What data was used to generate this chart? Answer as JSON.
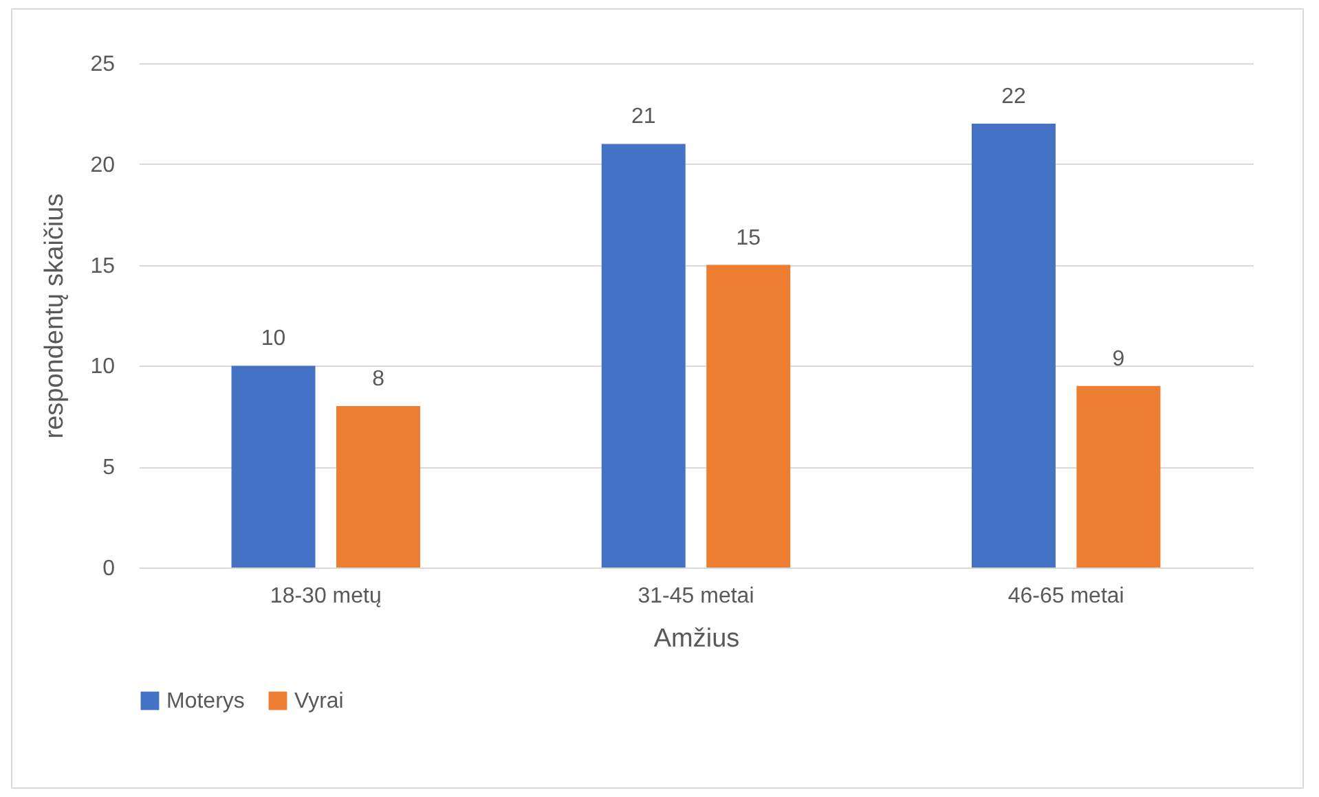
{
  "chart_data": {
    "type": "bar",
    "xlabel": "Amžius",
    "ylabel": "respondentų skaičius",
    "categories": [
      "18-30 metų",
      "31-45 metai",
      "46-65 metai"
    ],
    "series": [
      {
        "name": "Moterys",
        "color": "#4472c4",
        "values": [
          10,
          21,
          22
        ]
      },
      {
        "name": "Vyrai",
        "color": "#ed7d31",
        "values": [
          8,
          15,
          9
        ]
      }
    ],
    "ylim": [
      0,
      25
    ],
    "yticks": [
      0,
      5,
      10,
      15,
      20,
      25
    ],
    "grid": "y",
    "legend": "bottom",
    "data_labels": true
  }
}
